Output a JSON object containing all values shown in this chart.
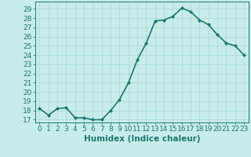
{
  "x": [
    0,
    1,
    2,
    3,
    4,
    5,
    6,
    7,
    8,
    9,
    10,
    11,
    12,
    13,
    14,
    15,
    16,
    17,
    18,
    19,
    20,
    21,
    22,
    23
  ],
  "y": [
    18.2,
    17.5,
    18.2,
    18.3,
    17.2,
    17.2,
    17.0,
    17.0,
    18.0,
    19.2,
    21.0,
    23.5,
    25.3,
    27.7,
    27.8,
    28.2,
    29.1,
    28.7,
    27.8,
    27.3,
    26.2,
    25.3,
    25.0,
    24.0
  ],
  "line_color": "#1a7a6e",
  "marker": "D",
  "marker_size": 2,
  "bg_color": "#c8ece9",
  "grid_color": "#a8d8d4",
  "xlabel": "Humidex (Indice chaleur)",
  "xlim": [
    -0.5,
    23.5
  ],
  "ylim": [
    16.7,
    29.8
  ],
  "yticks": [
    17,
    18,
    19,
    20,
    21,
    22,
    23,
    24,
    25,
    26,
    27,
    28,
    29
  ],
  "xticks": [
    0,
    1,
    2,
    3,
    4,
    5,
    6,
    7,
    8,
    9,
    10,
    11,
    12,
    13,
    14,
    15,
    16,
    17,
    18,
    19,
    20,
    21,
    22,
    23
  ],
  "tick_color": "#1a7a6e",
  "font_color": "#1a7a6e",
  "font_size": 6.5,
  "xlabel_fontsize": 7.5,
  "linewidth": 1.2
}
